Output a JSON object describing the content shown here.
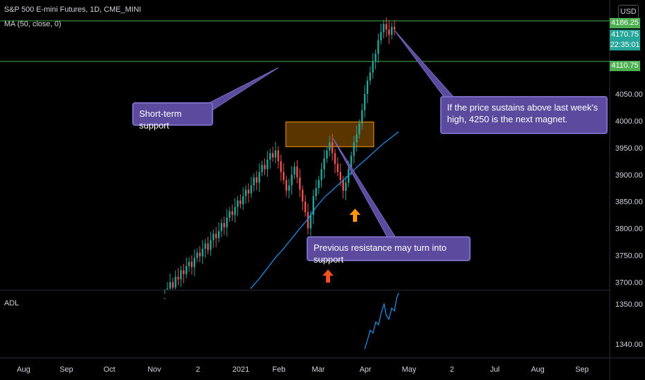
{
  "header": {
    "symbol_line": "S&P 500 E-mini Futures, 1D, CME_MINI",
    "ma_line": "MA (50, close, 0)",
    "currency": "USD",
    "adl_label": "ADL"
  },
  "price_tags": [
    {
      "value": "4186.25",
      "color": "#4caf50"
    },
    {
      "value": "4170.75",
      "color": "#26a69a"
    },
    {
      "value": "22:35:01",
      "color": "#26a69a"
    },
    {
      "value": "4110.75",
      "color": "#4caf50"
    }
  ],
  "annotations": [
    {
      "id": "short-term",
      "text": "Short-term support"
    },
    {
      "id": "magnet",
      "text": "If the price sustains above last week's high, 4250 is the next magnet."
    },
    {
      "id": "prev-resistance",
      "text": "Previous resistance may turn into support"
    }
  ],
  "colors": {
    "up": "#26a69a",
    "down": "#ef5350",
    "ma": "#2196f3",
    "hline": "#4caf50",
    "zone": "#ff9800",
    "arrow_red": "#f4511e",
    "arrow_orange": "#ff9800",
    "callout": "#5b4a9e"
  },
  "chart_data": {
    "type": "candlestick",
    "title": "S&P 500 E-mini Futures, 1D, CME_MINI",
    "x_tick_labels": [
      "Aug",
      "Sep",
      "Oct",
      "Nov",
      "2",
      "2021",
      "Feb",
      "Mar",
      "Apr",
      "May",
      "2",
      "Jul",
      "Aug",
      "Sep"
    ],
    "y_tick_labels": [
      "4050.00",
      "4000.00",
      "3950.00",
      "3900.00",
      "3850.00",
      "3800.00",
      "3750.00",
      "3700.00"
    ],
    "ylim": [
      3685,
      4225
    ],
    "horizontal_lines": [
      4186.25,
      4110.75
    ],
    "last_price": 4170.75,
    "resistance_zone": [
      3952,
      3998
    ],
    "moving_average": {
      "name": "MA (50, close, 0)",
      "values": [
        3688,
        3705,
        3725,
        3745,
        3762,
        3781,
        3800,
        3818,
        3840,
        3858,
        3872,
        3886,
        3900,
        3915,
        3928,
        3942,
        3956,
        3968,
        3980
      ]
    },
    "closes": [
      3670,
      3688,
      3700,
      3690,
      3710,
      3705,
      3722,
      3715,
      3730,
      3738,
      3728,
      3745,
      3755,
      3748,
      3762,
      3772,
      3760,
      3778,
      3790,
      3782,
      3795,
      3810,
      3802,
      3820,
      3832,
      3825,
      3840,
      3852,
      3845,
      3860,
      3872,
      3865,
      3880,
      3895,
      3885,
      3905,
      3918,
      3910,
      3928,
      3940,
      3932,
      3945,
      3925,
      3905,
      3890,
      3870,
      3880,
      3900,
      3915,
      3895,
      3872,
      3850,
      3830,
      3800,
      3825,
      3860,
      3875,
      3890,
      3910,
      3930,
      3945,
      3960,
      3940,
      3920,
      3905,
      3890,
      3870,
      3885,
      3910,
      3935,
      3960,
      3975,
      3995,
      4020,
      4050,
      4075,
      4090,
      4110,
      4125,
      4150,
      4165,
      4180,
      4170,
      4160,
      4175,
      4170
    ],
    "adl": {
      "label": "ADL",
      "y_tick_labels": [
        "1350.00",
        "1340.00"
      ]
    }
  }
}
